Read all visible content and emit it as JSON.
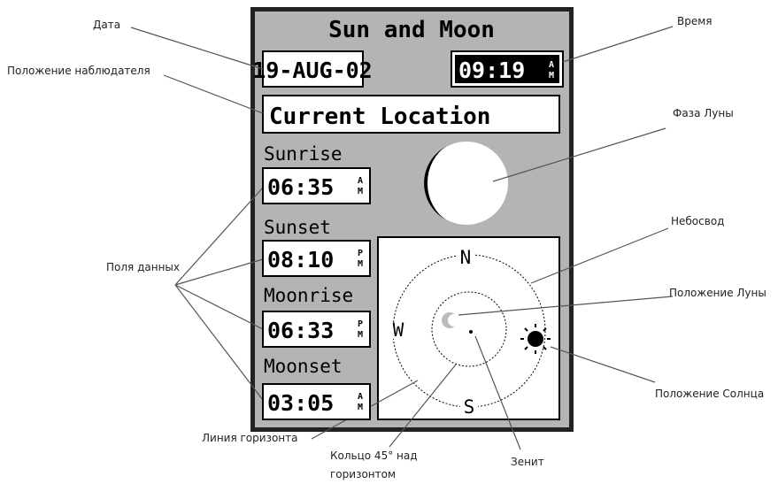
{
  "screen": {
    "title": "Sun and Moon",
    "date": "19-AUG-02",
    "time": "09:19",
    "time_ampm": [
      "A",
      "M"
    ],
    "location": "Current Location",
    "fields": [
      {
        "label": "Sunrise",
        "time": "06:35",
        "ampm": [
          "A",
          "M"
        ]
      },
      {
        "label": "Sunset",
        "time": "08:10",
        "ampm": [
          "P",
          "M"
        ]
      },
      {
        "label": "Moonrise",
        "time": "06:33",
        "ampm": [
          "P",
          "M"
        ]
      },
      {
        "label": "Moonset",
        "time": "03:05",
        "ampm": [
          "A",
          "M"
        ]
      }
    ],
    "compass": {
      "north": "N",
      "west": "W",
      "south": "S"
    }
  },
  "callouts": {
    "date": "Дата",
    "time": "Время",
    "observer": "Положение наблюдателя",
    "moon_phase": "Фаза Луны",
    "sky": "Небосвод",
    "data_fields": "Поля данных",
    "moon_position": "Положение Луны",
    "sun_position": "Положение Солнца",
    "horizon": "Линия горизонта",
    "ring45": [
      "Кольцо 45° над",
      "горизонтом"
    ],
    "zenith": "Зенит"
  }
}
